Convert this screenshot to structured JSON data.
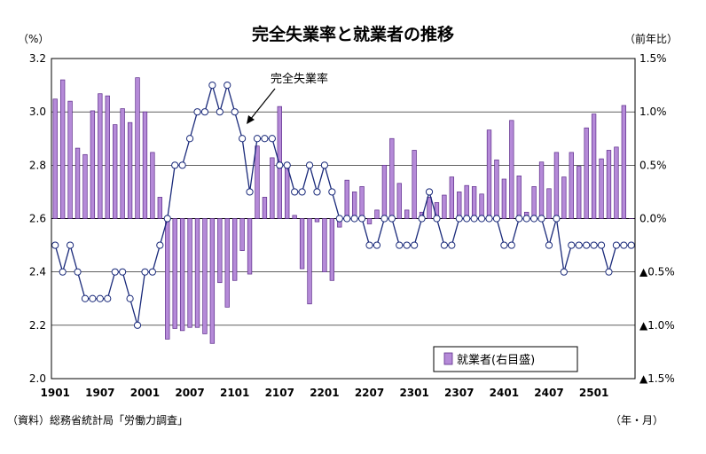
{
  "chart_data": {
    "type": "bar+line",
    "title": "完全失業率と就業者の推移",
    "left_unit": "（%）",
    "right_unit": "（前年比）",
    "x_unit": "（年・月）",
    "source": "（資料）総務省統計局「労働力調査」",
    "annotation": "完全失業率",
    "legend_label": "就業者(右目盛)",
    "legend_placement": "bottom-right",
    "grid": true,
    "left_axis": {
      "min": 2.0,
      "max": 3.2,
      "ticks": [
        "2.0",
        "2.2",
        "2.4",
        "2.6",
        "2.8",
        "3.0",
        "3.2"
      ]
    },
    "right_axis": {
      "min": -1.5,
      "max": 1.5,
      "ticks": [
        "▲1.5%",
        "▲1.0%",
        "▲0.5%",
        "0.0%",
        "0.5%",
        "1.0%",
        "1.5%"
      ]
    },
    "x_tick_labels": [
      "1901",
      "1907",
      "2001",
      "2007",
      "2101",
      "2107",
      "2201",
      "2207",
      "2301",
      "2307",
      "2401",
      "2407",
      "2501"
    ],
    "x_tick_months": [
      "2019-01",
      "2019-07",
      "2020-01",
      "2020-07",
      "2021-01",
      "2021-07",
      "2022-01",
      "2022-07",
      "2023-01",
      "2023-07",
      "2024-01",
      "2024-07",
      "2025-01"
    ],
    "series": [
      {
        "name": "完全失業率",
        "axis": "left",
        "kind": "line",
        "values": [
          2.5,
          2.4,
          2.5,
          2.4,
          2.3,
          2.3,
          2.3,
          2.3,
          2.4,
          2.4,
          2.3,
          2.2,
          2.4,
          2.4,
          2.5,
          2.6,
          2.8,
          2.8,
          2.9,
          3.0,
          3.0,
          3.1,
          3.0,
          3.1,
          3.0,
          2.9,
          2.7,
          2.9,
          2.9,
          2.9,
          2.8,
          2.8,
          2.7,
          2.7,
          2.8,
          2.7,
          2.8,
          2.7,
          2.6,
          2.6,
          2.6,
          2.6,
          2.5,
          2.5,
          2.6,
          2.6,
          2.5,
          2.5,
          2.5,
          2.6,
          2.7,
          2.6,
          2.5,
          2.5,
          2.6,
          2.6,
          2.6,
          2.6,
          2.6,
          2.6,
          2.5,
          2.5,
          2.6,
          2.6,
          2.6,
          2.6,
          2.5,
          2.6,
          2.4,
          2.5,
          2.5,
          2.5,
          2.5,
          2.5,
          2.4,
          2.5,
          2.5,
          2.5
        ]
      },
      {
        "name": "就業者(右目盛)",
        "axis": "right",
        "kind": "bar",
        "values": [
          1.12,
          1.3,
          1.1,
          0.66,
          0.6,
          1.01,
          1.17,
          1.15,
          0.88,
          1.03,
          0.9,
          1.32,
          1.0,
          0.62,
          0.2,
          -1.13,
          -1.03,
          -1.05,
          -1.02,
          -1.02,
          -1.08,
          -1.17,
          -0.6,
          -0.83,
          -0.58,
          -0.3,
          -0.52,
          0.68,
          0.2,
          0.57,
          1.05,
          0.5,
          0.03,
          -0.47,
          -0.8,
          -0.03,
          -0.5,
          -0.58,
          -0.08,
          0.36,
          0.25,
          0.3,
          -0.05,
          0.08,
          0.5,
          0.75,
          0.33,
          0.08,
          0.64,
          0.06,
          0.2,
          0.15,
          0.22,
          0.39,
          0.25,
          0.31,
          0.3,
          0.23,
          0.83,
          0.55,
          0.37,
          0.92,
          0.4,
          0.06,
          0.3,
          0.53,
          0.28,
          0.62,
          0.39,
          0.62,
          0.49,
          0.85,
          0.98,
          0.56,
          0.64,
          0.67,
          1.06,
          0.0
        ]
      }
    ]
  }
}
